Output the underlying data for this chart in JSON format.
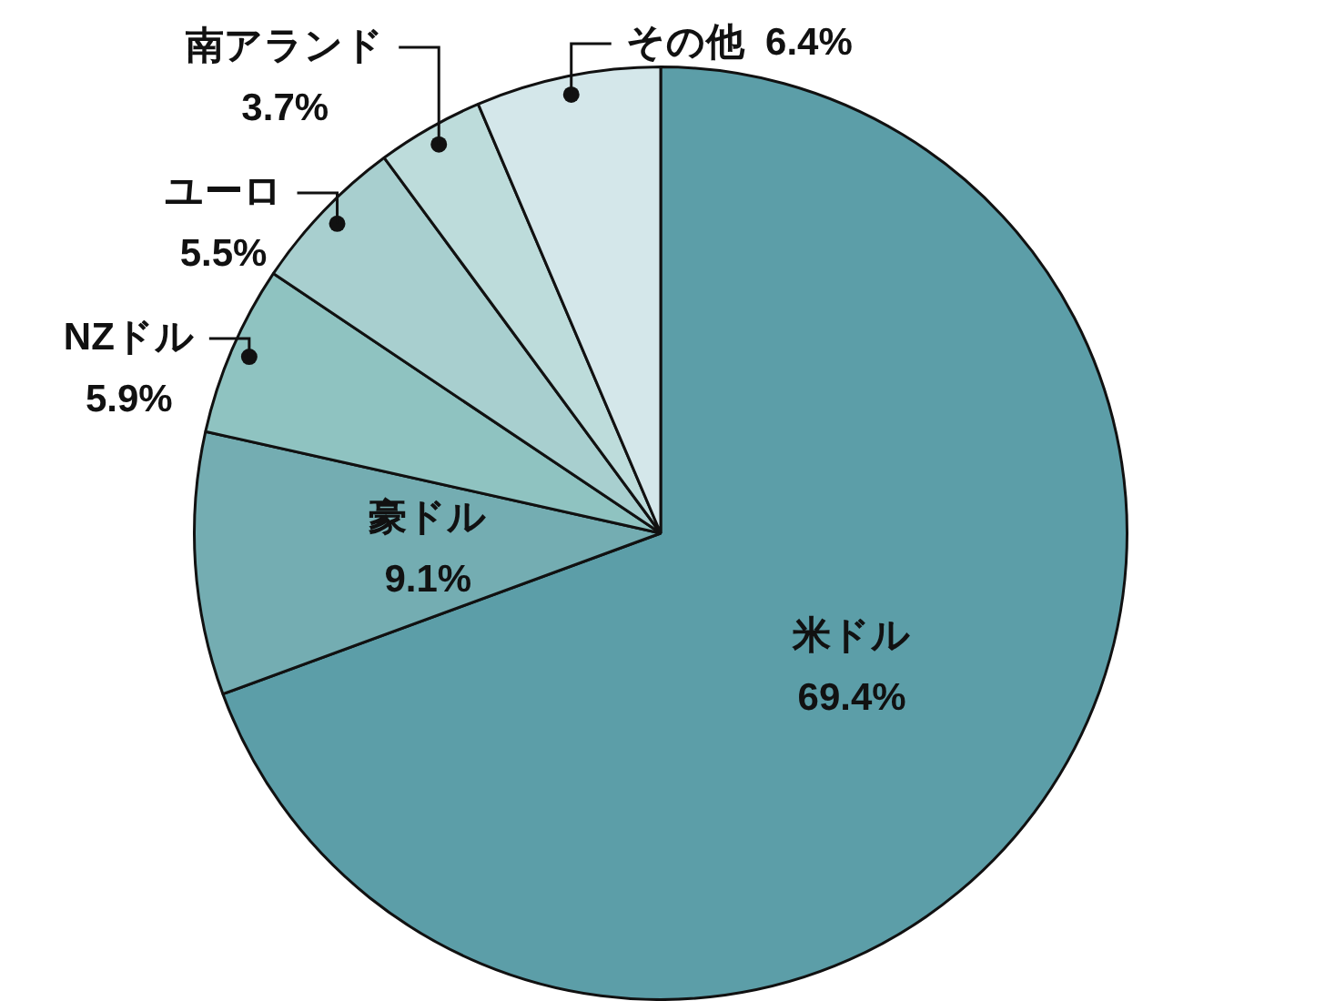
{
  "chart_data": {
    "type": "pie",
    "categories": [
      "米ドル",
      "豪ドル",
      "NZドル",
      "ユーロ",
      "南アランド",
      "その他"
    ],
    "values": [
      69.4,
      9.1,
      5.9,
      5.5,
      3.7,
      6.4
    ],
    "value_labels": [
      "69.4%",
      "9.1%",
      "5.9%",
      "5.5%",
      "3.7%",
      "6.4%"
    ],
    "colors": [
      "#5c9ea8",
      "#74adb2",
      "#8fc3c1",
      "#a8cfcf",
      "#bddcdb",
      "#d4e7ea"
    ]
  }
}
